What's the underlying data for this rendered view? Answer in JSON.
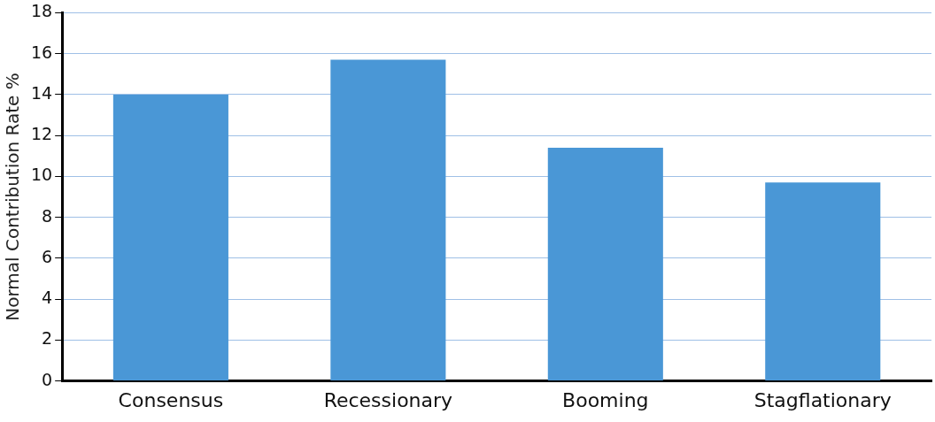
{
  "chart_data": {
    "type": "bar",
    "ylabel": "Normal Contribution Rate %",
    "categories": [
      "Consensus",
      "Recessionary",
      "Booming",
      "Stagflationary"
    ],
    "values": [
      14,
      15.7,
      11.4,
      9.7
    ],
    "color": "#4a97d6",
    "ylim": [
      0,
      18
    ],
    "yticks": [
      0,
      2,
      4,
      6,
      8,
      10,
      12,
      14,
      16,
      18
    ],
    "grid": "y"
  }
}
